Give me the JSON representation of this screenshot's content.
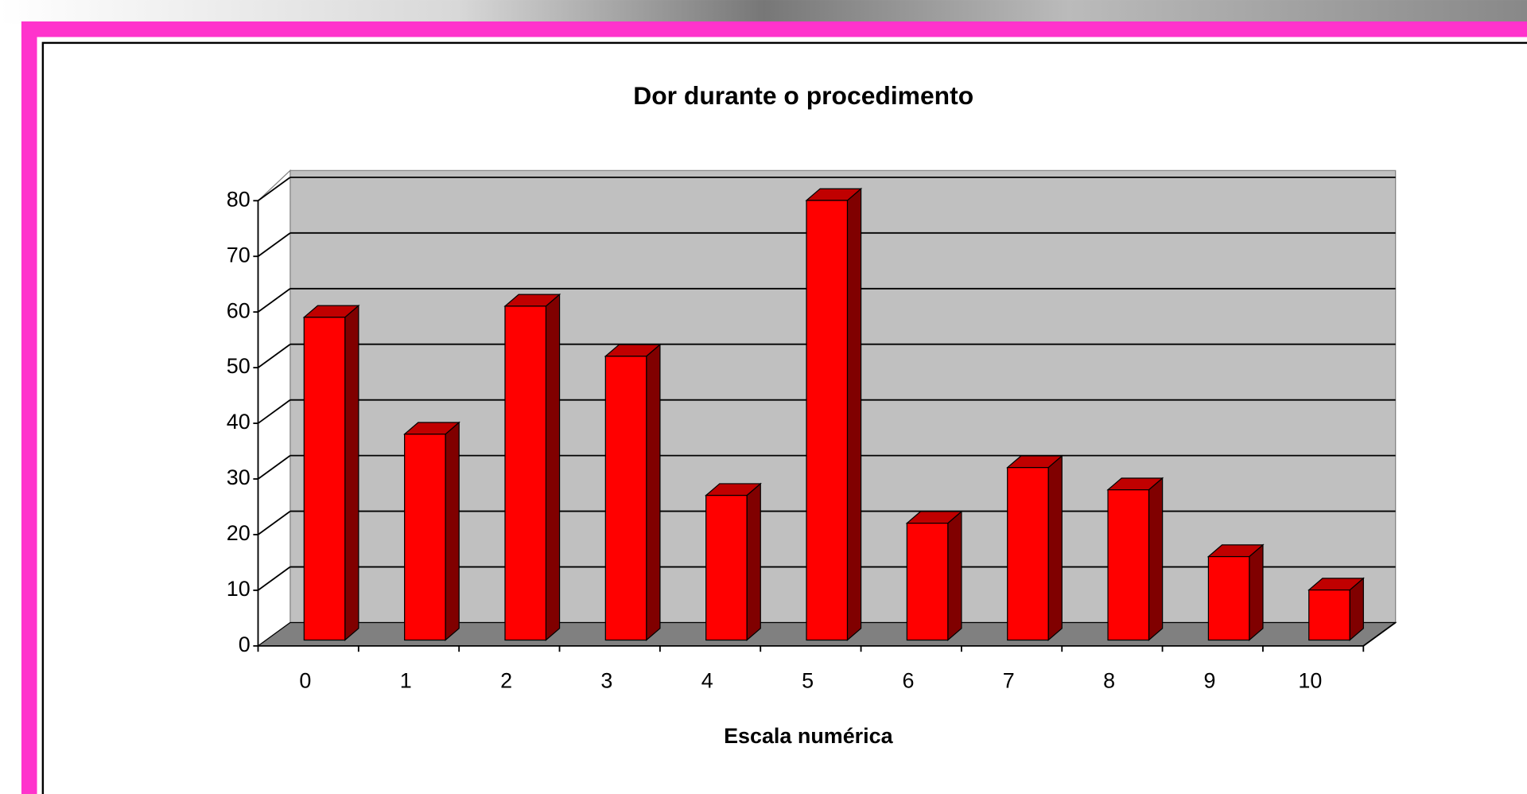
{
  "chart_data": {
    "type": "bar3d",
    "title": "Dor durante o procedimento",
    "x_label": "Escala numérica",
    "categories": [
      "0",
      "1",
      "2",
      "3",
      "4",
      "5",
      "6",
      "7",
      "8",
      "9",
      "10"
    ],
    "values": [
      58,
      37,
      60,
      51,
      26,
      79,
      21,
      31,
      27,
      15,
      9
    ],
    "color": "#ff0000",
    "side_color": "#800000",
    "ylim": [
      0,
      80
    ],
    "yticks": [
      0,
      10,
      20,
      30,
      40,
      50,
      60,
      70,
      80
    ],
    "grid": true
  }
}
